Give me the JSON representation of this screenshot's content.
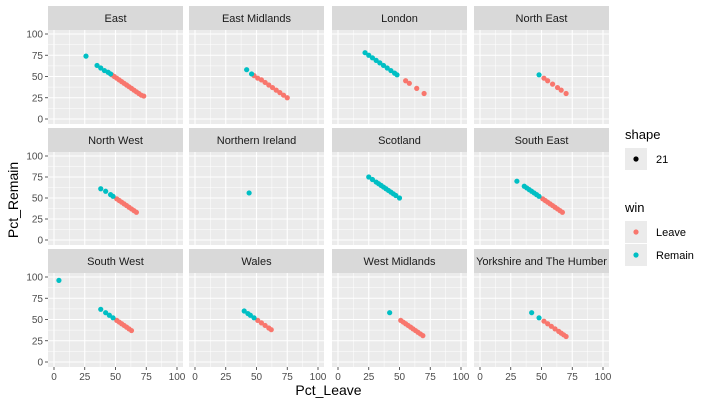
{
  "chart_data": {
    "type": "scatter",
    "xlabel": "Pct_Leave",
    "ylabel": "Pct_Remain",
    "xlim": [
      0,
      100
    ],
    "ylim": [
      0,
      100
    ],
    "x_ticks": [
      0,
      25,
      50,
      75,
      100
    ],
    "y_ticks": [
      0,
      25,
      50,
      75,
      100
    ],
    "x_tick_labels": [
      "0",
      "25",
      "50",
      "75",
      "100"
    ],
    "y_tick_labels": [
      "0",
      "25",
      "50",
      "75",
      "100"
    ],
    "grid": true,
    "legend_placement": "right",
    "legends": {
      "shape": {
        "title": "shape",
        "entries": [
          "21"
        ]
      },
      "win": {
        "title": "win",
        "entries": [
          {
            "label": "Leave",
            "color": "#F8766D"
          },
          {
            "label": "Remain",
            "color": "#00BFC4"
          }
        ]
      }
    },
    "colors": {
      "Leave": "#F8766D",
      "Remain": "#00BFC4",
      "panel_bg": "#EBEBEB",
      "strip_bg": "#D9D9D9"
    },
    "panels": [
      {
        "name": "East",
        "leave_points": [
          [
            47,
            52
          ],
          [
            49,
            50
          ],
          [
            51,
            48
          ],
          [
            53,
            46
          ],
          [
            55,
            44
          ],
          [
            57,
            42
          ],
          [
            59,
            40
          ],
          [
            61,
            38
          ],
          [
            63,
            36
          ],
          [
            65,
            34
          ],
          [
            67,
            32
          ],
          [
            69,
            30
          ],
          [
            71,
            28
          ],
          [
            73,
            27
          ]
        ],
        "remain_points": [
          [
            26,
            74
          ],
          [
            35,
            63
          ],
          [
            38,
            60
          ],
          [
            41,
            57
          ],
          [
            44,
            55
          ],
          [
            46,
            53
          ]
        ]
      },
      {
        "name": "East Midlands",
        "leave_points": [
          [
            48,
            51
          ],
          [
            51,
            48
          ],
          [
            54,
            46
          ],
          [
            57,
            43
          ],
          [
            60,
            40
          ],
          [
            63,
            37
          ],
          [
            66,
            34
          ],
          [
            69,
            31
          ],
          [
            72,
            28
          ],
          [
            75,
            25
          ]
        ],
        "remain_points": [
          [
            42,
            58
          ],
          [
            46,
            53
          ]
        ]
      },
      {
        "name": "London",
        "leave_points": [
          [
            55,
            45
          ],
          [
            58,
            42
          ],
          [
            64,
            36
          ],
          [
            70,
            30
          ]
        ],
        "remain_points": [
          [
            22,
            78
          ],
          [
            25,
            75
          ],
          [
            28,
            72
          ],
          [
            31,
            69
          ],
          [
            34,
            66
          ],
          [
            37,
            63
          ],
          [
            40,
            60
          ],
          [
            43,
            57
          ],
          [
            46,
            54
          ],
          [
            48,
            52
          ]
        ]
      },
      {
        "name": "North East",
        "leave_points": [
          [
            52,
            48
          ],
          [
            55,
            45
          ],
          [
            59,
            41
          ],
          [
            63,
            37
          ],
          [
            66,
            34
          ],
          [
            70,
            30
          ]
        ],
        "remain_points": [
          [
            48,
            52
          ]
        ]
      },
      {
        "name": "North West",
        "leave_points": [
          [
            51,
            49
          ],
          [
            53,
            47
          ],
          [
            55,
            45
          ],
          [
            57,
            43
          ],
          [
            59,
            41
          ],
          [
            61,
            39
          ],
          [
            63,
            37
          ],
          [
            65,
            35
          ],
          [
            67,
            33
          ]
        ],
        "remain_points": [
          [
            38,
            61
          ],
          [
            42,
            58
          ],
          [
            46,
            54
          ],
          [
            48,
            52
          ]
        ]
      },
      {
        "name": "Northern Ireland",
        "leave_points": [],
        "remain_points": [
          [
            44,
            56
          ]
        ]
      },
      {
        "name": "Scotland",
        "leave_points": [],
        "remain_points": [
          [
            25,
            75
          ],
          [
            28,
            72
          ],
          [
            31,
            69
          ],
          [
            33,
            67
          ],
          [
            35,
            65
          ],
          [
            37,
            63
          ],
          [
            39,
            61
          ],
          [
            41,
            59
          ],
          [
            43,
            57
          ],
          [
            45,
            55
          ],
          [
            47,
            53
          ],
          [
            50,
            50
          ]
        ]
      },
      {
        "name": "South East",
        "leave_points": [
          [
            51,
            49
          ],
          [
            53,
            47
          ],
          [
            55,
            45
          ],
          [
            57,
            43
          ],
          [
            59,
            41
          ],
          [
            61,
            39
          ],
          [
            63,
            37
          ],
          [
            65,
            35
          ],
          [
            67,
            33
          ]
        ],
        "remain_points": [
          [
            30,
            70
          ],
          [
            36,
            64
          ],
          [
            38,
            62
          ],
          [
            40,
            60
          ],
          [
            42,
            58
          ],
          [
            44,
            56
          ],
          [
            46,
            54
          ],
          [
            48,
            52
          ]
        ]
      },
      {
        "name": "South West",
        "leave_points": [
          [
            51,
            49
          ],
          [
            53,
            47
          ],
          [
            55,
            45
          ],
          [
            57,
            43
          ],
          [
            59,
            41
          ],
          [
            61,
            39
          ],
          [
            63,
            37
          ]
        ],
        "remain_points": [
          [
            4,
            96
          ],
          [
            38,
            62
          ],
          [
            42,
            58
          ],
          [
            45,
            55
          ],
          [
            48,
            52
          ]
        ]
      },
      {
        "name": "Wales",
        "leave_points": [
          [
            51,
            49
          ],
          [
            54,
            46
          ],
          [
            57,
            43
          ],
          [
            60,
            40
          ],
          [
            62,
            38
          ]
        ],
        "remain_points": [
          [
            40,
            60
          ],
          [
            43,
            57
          ],
          [
            45,
            55
          ],
          [
            48,
            52
          ]
        ]
      },
      {
        "name": "West Midlands",
        "leave_points": [
          [
            51,
            49
          ],
          [
            53,
            47
          ],
          [
            55,
            45
          ],
          [
            57,
            43
          ],
          [
            59,
            41
          ],
          [
            61,
            39
          ],
          [
            63,
            37
          ],
          [
            65,
            35
          ],
          [
            67,
            33
          ],
          [
            69,
            31
          ]
        ],
        "remain_points": [
          [
            42,
            58
          ]
        ]
      },
      {
        "name": "Yorkshire and The Humber",
        "leave_points": [
          [
            52,
            48
          ],
          [
            55,
            45
          ],
          [
            58,
            42
          ],
          [
            61,
            39
          ],
          [
            64,
            36
          ],
          [
            66,
            34
          ],
          [
            68,
            32
          ],
          [
            70,
            30
          ]
        ],
        "remain_points": [
          [
            42,
            58
          ],
          [
            48,
            52
          ]
        ]
      }
    ]
  }
}
